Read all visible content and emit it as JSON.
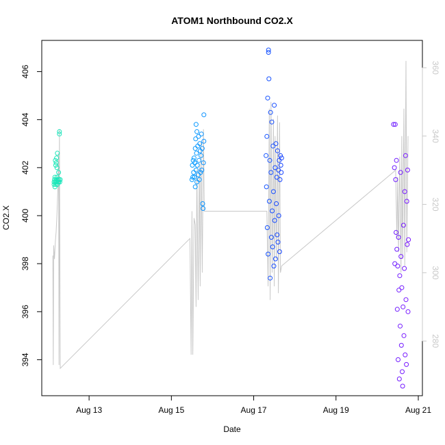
{
  "chart_data": {
    "type": "scatter",
    "title": "ATOM1 Northbound CO2.X",
    "xlabel": "Date",
    "ylabel": "CO2.X",
    "x_ticks": [
      "Aug 13",
      "Aug 15",
      "Aug 17",
      "Aug 19",
      "Aug 21"
    ],
    "x_tick_days": [
      13,
      15,
      17,
      19,
      21
    ],
    "xlim": [
      11.85,
      21.1
    ],
    "ylim": [
      392.5,
      407.3
    ],
    "y_ticks": [
      394,
      396,
      398,
      400,
      402,
      404,
      406
    ],
    "y2lim": [
      264,
      368
    ],
    "y2_ticks": [
      280,
      300,
      320,
      340,
      360
    ],
    "colors": {
      "line": "#c8c8c8",
      "axis": "#000000",
      "right_axis": "#c8c8c8",
      "point_gradient": [
        "#1de9b6",
        "#00b0ff",
        "#1a3cff",
        "#7a16ff"
      ]
    },
    "series": [
      {
        "values": [
          {
            "x": 12.15,
            "y": 401.4
          },
          {
            "x": 12.15,
            "y": 401.3
          },
          {
            "x": 12.16,
            "y": 401.5
          },
          {
            "x": 12.17,
            "y": 401.2
          },
          {
            "x": 12.17,
            "y": 401.6
          },
          {
            "x": 12.18,
            "y": 401.4
          },
          {
            "x": 12.18,
            "y": 402.3
          },
          {
            "x": 12.19,
            "y": 401.3
          },
          {
            "x": 12.19,
            "y": 402.1
          },
          {
            "x": 12.2,
            "y": 401.5
          },
          {
            "x": 12.2,
            "y": 402.2
          },
          {
            "x": 12.21,
            "y": 401.4
          },
          {
            "x": 12.21,
            "y": 402.4
          },
          {
            "x": 12.22,
            "y": 401.6
          },
          {
            "x": 12.22,
            "y": 402.0
          },
          {
            "x": 12.23,
            "y": 401.3
          },
          {
            "x": 12.23,
            "y": 402.6
          },
          {
            "x": 12.24,
            "y": 401.5
          },
          {
            "x": 12.25,
            "y": 401.4
          },
          {
            "x": 12.26,
            "y": 401.8
          },
          {
            "x": 12.26,
            "y": 401.4
          },
          {
            "x": 12.27,
            "y": 401.5
          },
          {
            "x": 12.28,
            "y": 403.5
          },
          {
            "x": 12.28,
            "y": 403.4
          },
          {
            "x": 12.29,
            "y": 401.4
          },
          {
            "x": 12.3,
            "y": 401.5
          },
          {
            "x": 15.5,
            "y": 401.5
          },
          {
            "x": 15.51,
            "y": 402.1
          },
          {
            "x": 15.52,
            "y": 401.6
          },
          {
            "x": 15.53,
            "y": 402.3
          },
          {
            "x": 15.54,
            "y": 401.8
          },
          {
            "x": 15.55,
            "y": 402.4
          },
          {
            "x": 15.56,
            "y": 401.6
          },
          {
            "x": 15.57,
            "y": 402.2
          },
          {
            "x": 15.58,
            "y": 401.2
          },
          {
            "x": 15.58,
            "y": 402.8
          },
          {
            "x": 15.59,
            "y": 403.2
          },
          {
            "x": 15.6,
            "y": 401.9
          },
          {
            "x": 15.6,
            "y": 403.8
          },
          {
            "x": 15.61,
            "y": 402.6
          },
          {
            "x": 15.62,
            "y": 401.4
          },
          {
            "x": 15.62,
            "y": 403.5
          },
          {
            "x": 15.63,
            "y": 402.1
          },
          {
            "x": 15.64,
            "y": 402.9
          },
          {
            "x": 15.65,
            "y": 401.7
          },
          {
            "x": 15.66,
            "y": 403.3
          },
          {
            "x": 15.67,
            "y": 402.3
          },
          {
            "x": 15.68,
            "y": 401.5
          },
          {
            "x": 15.69,
            "y": 403.0
          },
          {
            "x": 15.7,
            "y": 402.7
          },
          {
            "x": 15.71,
            "y": 401.8
          },
          {
            "x": 15.72,
            "y": 402.5
          },
          {
            "x": 15.73,
            "y": 403.4
          },
          {
            "x": 15.74,
            "y": 401.9
          },
          {
            "x": 15.75,
            "y": 402.8
          },
          {
            "x": 15.76,
            "y": 400.5
          },
          {
            "x": 15.77,
            "y": 400.3
          },
          {
            "x": 15.78,
            "y": 402.2
          },
          {
            "x": 15.79,
            "y": 404.2
          },
          {
            "x": 15.79,
            "y": 403.1
          },
          {
            "x": 17.3,
            "y": 402.5
          },
          {
            "x": 17.31,
            "y": 401.2
          },
          {
            "x": 17.32,
            "y": 403.3
          },
          {
            "x": 17.33,
            "y": 399.5
          },
          {
            "x": 17.34,
            "y": 404.9
          },
          {
            "x": 17.35,
            "y": 398.4
          },
          {
            "x": 17.36,
            "y": 406.8
          },
          {
            "x": 17.36,
            "y": 406.9
          },
          {
            "x": 17.37,
            "y": 405.7
          },
          {
            "x": 17.38,
            "y": 400.6
          },
          {
            "x": 17.39,
            "y": 402.3
          },
          {
            "x": 17.4,
            "y": 397.4
          },
          {
            "x": 17.41,
            "y": 404.3
          },
          {
            "x": 17.42,
            "y": 401.8
          },
          {
            "x": 17.43,
            "y": 399.1
          },
          {
            "x": 17.44,
            "y": 403.9
          },
          {
            "x": 17.45,
            "y": 400.2
          },
          {
            "x": 17.46,
            "y": 398.7
          },
          {
            "x": 17.47,
            "y": 402.9
          },
          {
            "x": 17.48,
            "y": 401.0
          },
          {
            "x": 17.49,
            "y": 397.9
          },
          {
            "x": 17.5,
            "y": 404.6
          },
          {
            "x": 17.51,
            "y": 399.8
          },
          {
            "x": 17.52,
            "y": 402.0
          },
          {
            "x": 17.53,
            "y": 398.2
          },
          {
            "x": 17.54,
            "y": 403.0
          },
          {
            "x": 17.55,
            "y": 400.5
          },
          {
            "x": 17.56,
            "y": 401.6
          },
          {
            "x": 17.57,
            "y": 399.2
          },
          {
            "x": 17.58,
            "y": 402.7
          },
          {
            "x": 17.59,
            "y": 398.9
          },
          {
            "x": 17.6,
            "y": 401.9
          },
          {
            "x": 17.61,
            "y": 400.0
          },
          {
            "x": 17.62,
            "y": 402.3
          },
          {
            "x": 17.63,
            "y": 398.5
          },
          {
            "x": 17.64,
            "y": 401.5
          },
          {
            "x": 17.65,
            "y": 402.5
          },
          {
            "x": 17.66,
            "y": 402.1
          },
          {
            "x": 17.67,
            "y": 401.8
          },
          {
            "x": 17.68,
            "y": 402.4
          },
          {
            "x": 20.4,
            "y": 403.8
          },
          {
            "x": 20.42,
            "y": 402.0
          },
          {
            "x": 20.43,
            "y": 398.0
          },
          {
            "x": 20.44,
            "y": 403.8
          },
          {
            "x": 20.45,
            "y": 401.5
          },
          {
            "x": 20.46,
            "y": 399.3
          },
          {
            "x": 20.47,
            "y": 402.3
          },
          {
            "x": 20.48,
            "y": 398.6
          },
          {
            "x": 20.49,
            "y": 396.1
          },
          {
            "x": 20.5,
            "y": 397.9
          },
          {
            "x": 20.51,
            "y": 394.0
          },
          {
            "x": 20.52,
            "y": 399.1
          },
          {
            "x": 20.53,
            "y": 396.9
          },
          {
            "x": 20.54,
            "y": 393.2
          },
          {
            "x": 20.55,
            "y": 397.5
          },
          {
            "x": 20.56,
            "y": 395.4
          },
          {
            "x": 20.57,
            "y": 401.8
          },
          {
            "x": 20.58,
            "y": 398.3
          },
          {
            "x": 20.59,
            "y": 394.6
          },
          {
            "x": 20.6,
            "y": 397.0
          },
          {
            "x": 20.61,
            "y": 393.5
          },
          {
            "x": 20.62,
            "y": 392.9
          },
          {
            "x": 20.63,
            "y": 396.2
          },
          {
            "x": 20.64,
            "y": 399.6
          },
          {
            "x": 20.65,
            "y": 395.0
          },
          {
            "x": 20.66,
            "y": 397.8
          },
          {
            "x": 20.67,
            "y": 401.0
          },
          {
            "x": 20.68,
            "y": 394.2
          },
          {
            "x": 20.69,
            "y": 402.5
          },
          {
            "x": 20.7,
            "y": 396.5
          },
          {
            "x": 20.71,
            "y": 393.8
          },
          {
            "x": 20.72,
            "y": 400.6
          },
          {
            "x": 20.73,
            "y": 398.8
          },
          {
            "x": 20.74,
            "y": 401.9
          },
          {
            "x": 20.75,
            "y": 396.0
          },
          {
            "x": 20.76,
            "y": 399.0
          }
        ]
      },
      {
        "axis": "right",
        "values": [
          {
            "x": 12.12,
            "y": 305
          },
          {
            "x": 12.13,
            "y": 273
          },
          {
            "x": 12.14,
            "y": 308
          },
          {
            "x": 12.16,
            "y": 304
          },
          {
            "x": 12.18,
            "y": 309
          },
          {
            "x": 12.2,
            "y": 312
          },
          {
            "x": 12.22,
            "y": 317
          },
          {
            "x": 12.24,
            "y": 324
          },
          {
            "x": 12.26,
            "y": 335
          },
          {
            "x": 12.27,
            "y": 273
          },
          {
            "x": 12.28,
            "y": 342
          },
          {
            "x": 12.3,
            "y": 272
          },
          {
            "x": 15.45,
            "y": 310
          },
          {
            "x": 15.48,
            "y": 276
          },
          {
            "x": 15.5,
            "y": 318
          },
          {
            "x": 15.52,
            "y": 276
          },
          {
            "x": 15.55,
            "y": 316
          },
          {
            "x": 15.58,
            "y": 314
          },
          {
            "x": 15.6,
            "y": 290
          },
          {
            "x": 15.62,
            "y": 330
          },
          {
            "x": 15.65,
            "y": 292
          },
          {
            "x": 15.68,
            "y": 332
          },
          {
            "x": 15.7,
            "y": 296
          },
          {
            "x": 15.72,
            "y": 338
          },
          {
            "x": 15.75,
            "y": 300
          },
          {
            "x": 15.78,
            "y": 342
          },
          {
            "x": 15.8,
            "y": 318
          },
          {
            "x": 17.32,
            "y": 318
          },
          {
            "x": 17.35,
            "y": 296
          },
          {
            "x": 17.38,
            "y": 348
          },
          {
            "x": 17.4,
            "y": 292
          },
          {
            "x": 17.42,
            "y": 350
          },
          {
            "x": 17.45,
            "y": 300
          },
          {
            "x": 17.48,
            "y": 345
          },
          {
            "x": 17.5,
            "y": 296
          },
          {
            "x": 17.52,
            "y": 340
          },
          {
            "x": 17.55,
            "y": 304
          },
          {
            "x": 17.58,
            "y": 346
          },
          {
            "x": 17.6,
            "y": 294
          },
          {
            "x": 17.63,
            "y": 344
          },
          {
            "x": 17.65,
            "y": 300
          },
          {
            "x": 17.68,
            "y": 302
          },
          {
            "x": 20.45,
            "y": 330
          },
          {
            "x": 20.48,
            "y": 310
          },
          {
            "x": 20.5,
            "y": 328
          },
          {
            "x": 20.52,
            "y": 306
          },
          {
            "x": 20.55,
            "y": 334
          },
          {
            "x": 20.58,
            "y": 300
          },
          {
            "x": 20.6,
            "y": 340
          },
          {
            "x": 20.62,
            "y": 304
          },
          {
            "x": 20.65,
            "y": 348
          },
          {
            "x": 20.67,
            "y": 302
          },
          {
            "x": 20.7,
            "y": 362
          },
          {
            "x": 20.72,
            "y": 306
          },
          {
            "x": 20.75,
            "y": 340
          }
        ]
      }
    ]
  }
}
